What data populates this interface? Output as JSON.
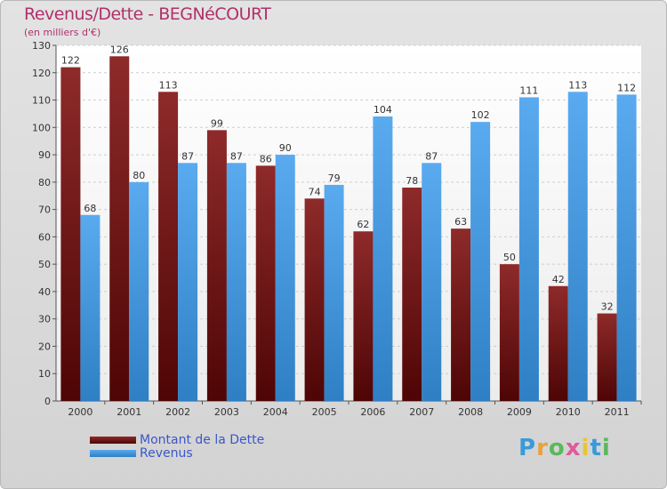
{
  "chart_data": {
    "type": "bar",
    "title": "Revenus/Dette - BEGNéCOURT",
    "subtitle": "(en milliers d'€)",
    "categories": [
      "2000",
      "2001",
      "2002",
      "2003",
      "2004",
      "2005",
      "2006",
      "2007",
      "2008",
      "2009",
      "2010",
      "2011"
    ],
    "series": [
      {
        "name": "Montant de la Dette",
        "color": "#7a1a1a",
        "values": [
          122,
          126,
          113,
          99,
          86,
          74,
          62,
          78,
          63,
          50,
          42,
          32
        ]
      },
      {
        "name": "Revenus",
        "color": "#4f9fe0",
        "values": [
          68,
          80,
          87,
          87,
          90,
          79,
          104,
          87,
          102,
          111,
          113,
          112
        ]
      }
    ],
    "ylim": [
      0,
      130
    ],
    "ytick_step": 10,
    "grid": true,
    "legend_position": "bottom-left"
  },
  "brand": {
    "letters": [
      "P",
      "r",
      "o",
      "x",
      "i",
      "t",
      "i"
    ],
    "colors": [
      "#3a9ad9",
      "#e8a23a",
      "#5cb85c",
      "#e05a9a",
      "#e8c43a",
      "#3a9ad9",
      "#5cb85c"
    ]
  }
}
